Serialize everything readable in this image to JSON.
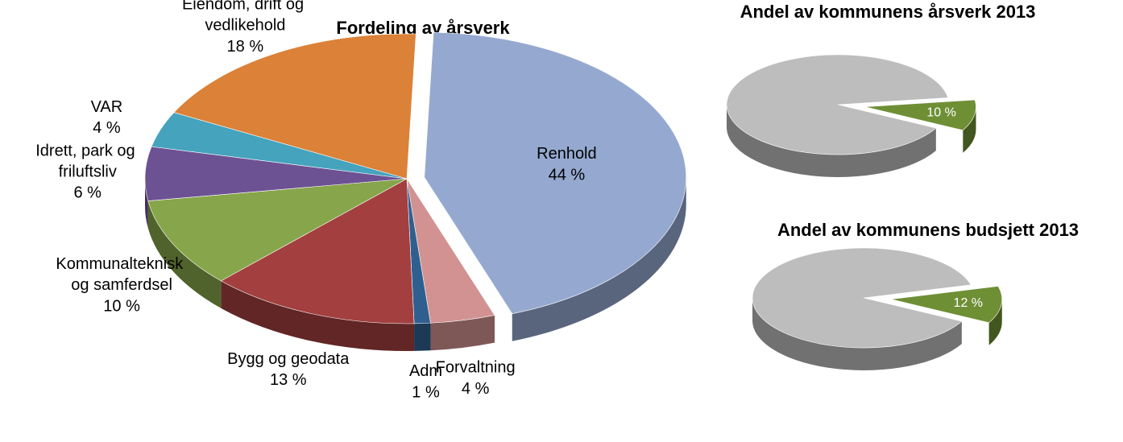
{
  "chart_data": [
    {
      "type": "pie",
      "title": "Fordeling av årsverk",
      "categories": [
        "Renhold",
        "Forvaltning",
        "Adm",
        "Bygg og geodata",
        "Kommunalteknisk og samferdsel",
        "Idrett, park og friluftsliv",
        "VAR",
        "Eiendom, drift og vedlikehold"
      ],
      "values": [
        44,
        4,
        1,
        13,
        10,
        6,
        4,
        18
      ],
      "value_labels": [
        "44 %",
        "4 %",
        "1 %",
        "13 %",
        "10 %",
        "6 %",
        "4 %",
        "18 %"
      ],
      "colors": [
        "#95a9d0",
        "#d29291",
        "#2f5f8f",
        "#a33f3f",
        "#87a54a",
        "#6d5293",
        "#45a3bd",
        "#db8138"
      ]
    },
    {
      "type": "pie",
      "title": "Andel av kommunens årsverk 2013",
      "values": [
        90,
        10
      ],
      "value_labels": [
        null,
        "10 %"
      ],
      "colors": [
        "#bdbdbd",
        "#6f8f35"
      ]
    },
    {
      "type": "pie",
      "title": "Andel av kommunens budsjett 2013",
      "values": [
        88,
        12
      ],
      "value_labels": [
        null,
        "12 %"
      ],
      "colors": [
        "#bdbdbd",
        "#6f8f35"
      ]
    }
  ]
}
